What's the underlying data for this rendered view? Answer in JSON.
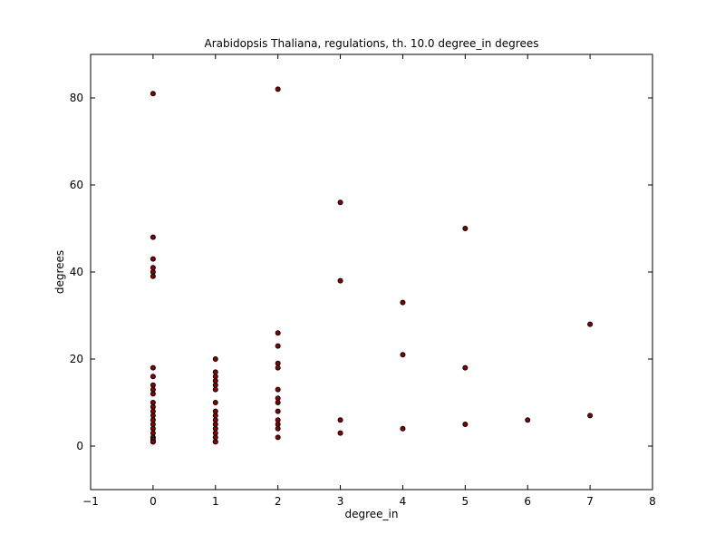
{
  "chart_data": {
    "type": "scatter",
    "title": "Arabidopsis Thaliana, regulations, th. 10.0 degree_in degrees",
    "xlabel": "degree_in",
    "ylabel": "degrees",
    "xlim": [
      -1,
      8
    ],
    "ylim": [
      -10,
      90
    ],
    "xticks": [
      -1,
      0,
      1,
      2,
      3,
      4,
      5,
      6,
      7,
      8
    ],
    "yticks": [
      0,
      20,
      40,
      60,
      80
    ],
    "grid": false,
    "marker_color": "#8b0000",
    "marker_edge_color": "#000000",
    "series": [
      {
        "x": [
          0,
          0,
          0,
          0,
          0,
          0,
          0,
          0,
          0,
          0,
          0,
          0,
          0,
          0,
          0,
          0,
          0,
          0,
          0,
          0,
          0,
          0,
          0,
          0,
          1,
          1,
          1,
          1,
          1,
          1,
          1,
          1,
          1,
          1,
          1,
          1,
          1,
          1,
          1,
          1,
          2,
          2,
          2,
          2,
          2,
          2,
          2,
          2,
          2,
          2,
          2,
          2,
          2,
          3,
          3,
          3,
          3,
          4,
          4,
          4,
          5,
          5,
          5,
          6,
          7,
          7
        ],
        "y": [
          81,
          48,
          43,
          41,
          40,
          39,
          18,
          16,
          14,
          13,
          12,
          10,
          9,
          8,
          7,
          6,
          5,
          4,
          3,
          2,
          1.5,
          1,
          1,
          1,
          20,
          17,
          16,
          15,
          14,
          13,
          10,
          8,
          7,
          6,
          5,
          4,
          3,
          2,
          1,
          1,
          82,
          26,
          23,
          19,
          18,
          13,
          11,
          10,
          8,
          6,
          5,
          4,
          2,
          56,
          38,
          6,
          3,
          33,
          21,
          4,
          50,
          18,
          5,
          6,
          28,
          7
        ]
      }
    ]
  }
}
